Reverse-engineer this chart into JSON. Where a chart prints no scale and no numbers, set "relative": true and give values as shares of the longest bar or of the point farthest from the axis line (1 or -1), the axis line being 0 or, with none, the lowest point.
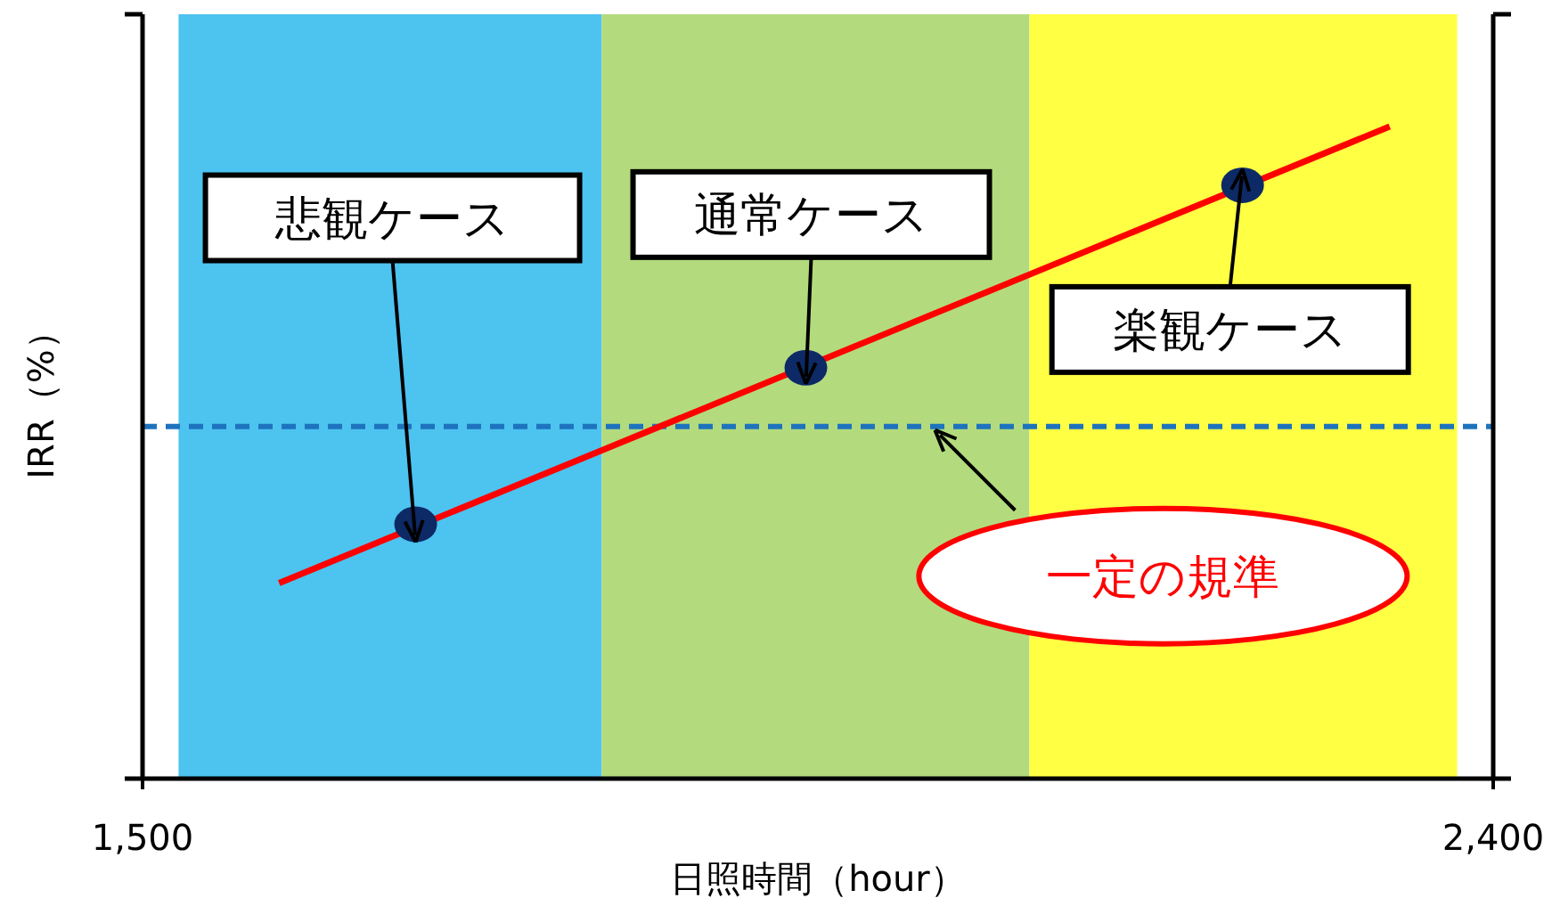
{
  "chart_data": {
    "type": "line",
    "relative": true,
    "xlabel": "日照時間（hour）",
    "ylabel": "IRR（%）",
    "xlim": [
      1500,
      2400
    ],
    "xticks": [
      {
        "value": 1500,
        "label": "1,500"
      },
      {
        "value": 2400,
        "label": "2,400"
      }
    ],
    "series": [
      {
        "color": "#ff0000",
        "x": [
          1591,
          2331
        ],
        "values": [
          0.3,
          1.0
        ]
      },
      {
        "type": "scatter",
        "color": "#0d2a66",
        "marker": "circle",
        "x": [
          1682,
          1942,
          2233
        ],
        "values": [
          0.39,
          0.63,
          0.91
        ]
      }
    ],
    "bands": [
      {
        "axis": "x",
        "from": 1524,
        "to": 1806,
        "color": "#4dc3f0"
      },
      {
        "axis": "x",
        "from": 1806,
        "to": 2091,
        "color": "#b3db7d"
      },
      {
        "axis": "x",
        "from": 2091,
        "to": 2376,
        "color": "#ffff44"
      }
    ],
    "ref_lines": [
      {
        "axis": "y",
        "value": 0.54,
        "color": "#1e73be",
        "line_style": "dashed"
      }
    ],
    "annotations": [
      {
        "text": "悲観ケース",
        "x": 1682,
        "y": 0.39
      },
      {
        "text": "通常ケース",
        "x": 1942,
        "y": 0.63
      },
      {
        "text": "楽観ケース",
        "x": 2233,
        "y": 0.91
      },
      {
        "text": "一定の規準",
        "x": 2028,
        "y": 0.54
      }
    ]
  }
}
